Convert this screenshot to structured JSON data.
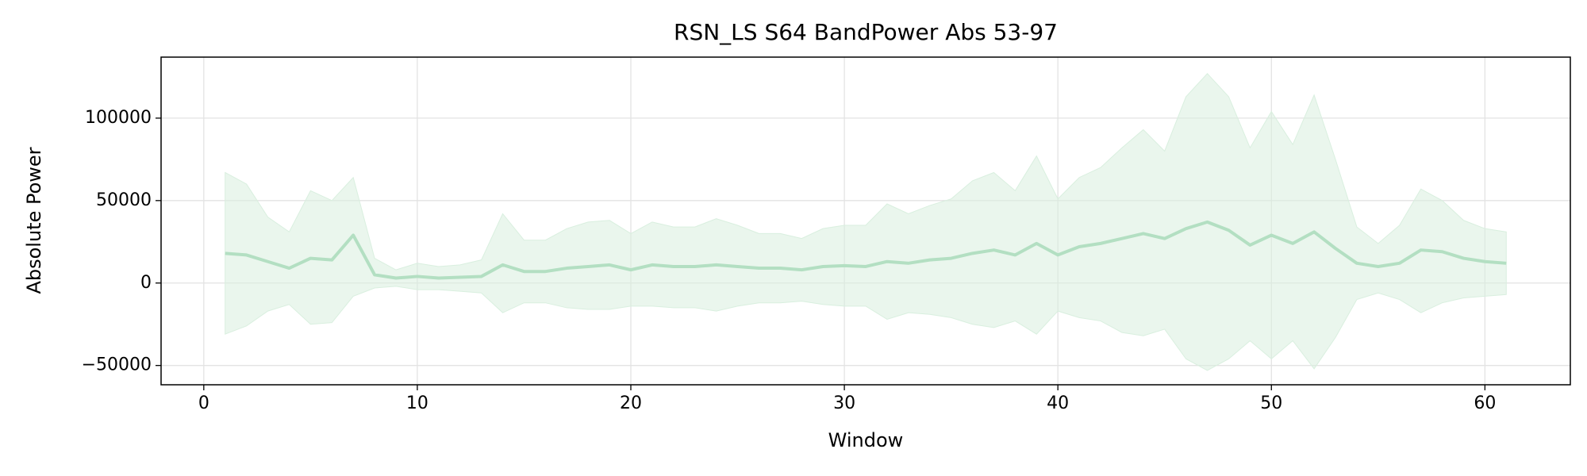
{
  "chart_data": {
    "type": "line",
    "title": "RSN_LS S64 BandPower Abs 53-97",
    "xlabel": "Window",
    "ylabel": "Absolute Power",
    "x": [
      1,
      2,
      3,
      4,
      5,
      6,
      7,
      8,
      9,
      10,
      11,
      12,
      13,
      14,
      15,
      16,
      17,
      18,
      19,
      20,
      21,
      22,
      23,
      24,
      25,
      26,
      27,
      28,
      29,
      30,
      31,
      32,
      33,
      34,
      35,
      36,
      37,
      38,
      39,
      40,
      41,
      42,
      43,
      44,
      45,
      46,
      47,
      48,
      49,
      50,
      51,
      52,
      53,
      54,
      55,
      56,
      57,
      58,
      59,
      60,
      61
    ],
    "values": [
      18000,
      17000,
      13000,
      9000,
      15000,
      14000,
      29000,
      5000,
      3000,
      4000,
      3000,
      3500,
      4000,
      11000,
      7000,
      7000,
      9000,
      10000,
      11000,
      8000,
      11000,
      10000,
      10000,
      11000,
      10000,
      9000,
      9000,
      8000,
      10000,
      10500,
      10000,
      13000,
      12000,
      14000,
      15000,
      18000,
      20000,
      17000,
      24000,
      17000,
      22000,
      24000,
      27000,
      30000,
      27000,
      33000,
      37000,
      32000,
      23000,
      29000,
      24000,
      31000,
      21000,
      12000,
      10000,
      12000,
      20000,
      19000,
      15000,
      13000,
      12000
    ],
    "upper": [
      67000,
      60000,
      40000,
      31000,
      56000,
      50000,
      64000,
      15000,
      8000,
      12000,
      10000,
      11000,
      14000,
      42000,
      26000,
      26000,
      33000,
      37000,
      38000,
      30000,
      37000,
      34000,
      34000,
      39000,
      35000,
      30000,
      30000,
      27000,
      33000,
      35000,
      35000,
      48000,
      42000,
      47000,
      51000,
      62000,
      67000,
      56000,
      77000,
      51000,
      64000,
      70000,
      82000,
      93000,
      80000,
      113000,
      127000,
      113000,
      82000,
      104000,
      84000,
      114000,
      75000,
      34000,
      24000,
      35000,
      57000,
      50000,
      38000,
      33000,
      31000
    ],
    "lower": [
      -31000,
      -26000,
      -17000,
      -13000,
      -25000,
      -24000,
      -8000,
      -3000,
      -2000,
      -4000,
      -4000,
      -5000,
      -6000,
      -18000,
      -12000,
      -12000,
      -15000,
      -16000,
      -16000,
      -14000,
      -14000,
      -15000,
      -15000,
      -17000,
      -14000,
      -12000,
      -12000,
      -11000,
      -13000,
      -14000,
      -14000,
      -22000,
      -18000,
      -19000,
      -21000,
      -25000,
      -27000,
      -23000,
      -31000,
      -17000,
      -21000,
      -23000,
      -30000,
      -32000,
      -28000,
      -46000,
      -53000,
      -46000,
      -35000,
      -46000,
      -35000,
      -52000,
      -33000,
      -10000,
      -6000,
      -10000,
      -18000,
      -12000,
      -9000,
      -8000,
      -7000
    ],
    "color": "#b3dfc2",
    "band_color": "#d9efdf",
    "xlim": [
      -2,
      64
    ],
    "ylim": [
      -61700,
      137000
    ],
    "xticks": [
      0,
      10,
      20,
      30,
      40,
      50,
      60
    ],
    "yticks": [
      {
        "value": -50000,
        "label": "−50000"
      },
      0,
      50000,
      100000
    ],
    "grid": true
  }
}
